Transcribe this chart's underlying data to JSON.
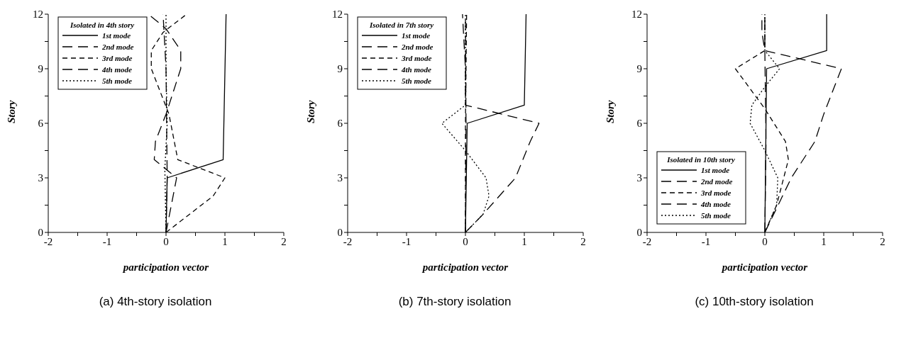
{
  "chart_data": [
    {
      "type": "line",
      "xlabel": "participation vector",
      "ylabel": "Story",
      "legend_title": "Isolated in 4th story",
      "legend": "top left",
      "marker": "none",
      "annotations": [
        "(a) 4th-story isolation"
      ],
      "xlim": [
        -2,
        2
      ],
      "xticks": [
        -2,
        {
          "value": -1.5,
          "label": null
        },
        -1,
        {
          "value": -0.5,
          "label": null
        },
        0,
        {
          "value": 0.5,
          "label": null
        },
        1,
        {
          "value": 1.5,
          "label": null
        },
        2
      ],
      "ylim": [
        0,
        12
      ],
      "yticks": [
        0,
        {
          "value": 1.5,
          "label": null
        },
        3,
        {
          "value": 4.5,
          "label": null
        },
        6,
        {
          "value": 7.5,
          "label": null
        },
        9,
        {
          "value": 10.5,
          "label": null
        },
        12
      ],
      "series": [
        {
          "name": "1st mode",
          "color": "#000000",
          "line_style": "solid",
          "x": [
            0,
            0.02,
            0.97,
            1.02
          ],
          "values": [
            0,
            3,
            4,
            12
          ]
        },
        {
          "name": "2nd mode",
          "color": "#000000",
          "line_style": "dashed",
          "x": [
            0,
            0.02,
            0.01,
            0,
            -0.05
          ],
          "values": [
            0,
            3,
            6,
            9,
            12
          ]
        },
        {
          "name": "3rd mode",
          "color": "#000000",
          "line_style": "dashed",
          "x": [
            0,
            0.8,
            1.0,
            0.2,
            0.05,
            -0.25,
            -0.25,
            -0.05,
            0.35
          ],
          "values": [
            0,
            2,
            3,
            4,
            6.5,
            9,
            10,
            11,
            12
          ]
        },
        {
          "name": "4th mode",
          "color": "#000000",
          "line_style": "dashed",
          "x": [
            0,
            0.18,
            -0.2,
            -0.18,
            0,
            0.25,
            0.25,
            0,
            -0.3
          ],
          "values": [
            0,
            3,
            4,
            5,
            6.5,
            9,
            10,
            11.2,
            12
          ]
        },
        {
          "name": "5th mode",
          "color": "#000000",
          "line_style": "dotted",
          "x": [
            0,
            -0.02,
            0.02,
            0,
            0
          ],
          "values": [
            0,
            3.5,
            6,
            9,
            12
          ]
        }
      ]
    },
    {
      "type": "line",
      "xlabel": "participation vector",
      "ylabel": "Story",
      "legend_title": "Isolated in 7th story",
      "legend": "top left",
      "marker": "none",
      "annotations": [
        "(b) 7th-story isolation"
      ],
      "xlim": [
        -2,
        2
      ],
      "xticks": [
        -2,
        {
          "value": -1.5,
          "label": null
        },
        -1,
        {
          "value": -0.5,
          "label": null
        },
        0,
        {
          "value": 0.5,
          "label": null
        },
        1,
        {
          "value": 1.5,
          "label": null
        },
        2
      ],
      "ylim": [
        0,
        12
      ],
      "yticks": [
        0,
        {
          "value": 1.5,
          "label": null
        },
        3,
        {
          "value": 4.5,
          "label": null
        },
        6,
        {
          "value": 7.5,
          "label": null
        },
        9,
        {
          "value": 10.5,
          "label": null
        },
        12
      ],
      "series": [
        {
          "name": "1st mode",
          "color": "#000000",
          "line_style": "solid",
          "x": [
            0,
            0.03,
            1.0,
            1.03
          ],
          "values": [
            0,
            6,
            7,
            12
          ]
        },
        {
          "name": "2nd mode",
          "color": "#000000",
          "line_style": "dashed",
          "x": [
            0,
            0.3,
            0.85,
            1.1,
            1.25,
            0,
            0,
            -0.05
          ],
          "values": [
            0,
            1,
            3,
            5,
            6,
            7,
            9,
            12
          ]
        },
        {
          "name": "3rd mode",
          "color": "#000000",
          "line_style": "dashed",
          "x": [
            0,
            0,
            0.02
          ],
          "values": [
            0,
            6,
            12
          ]
        },
        {
          "name": "4th mode",
          "color": "#000000",
          "line_style": "dashed",
          "x": [
            0,
            0.01,
            0
          ],
          "values": [
            0,
            6,
            12
          ]
        },
        {
          "name": "5th mode",
          "color": "#000000",
          "line_style": "dotted",
          "x": [
            0,
            0.3,
            0.4,
            0.35,
            0,
            -0.4,
            0,
            0,
            0
          ],
          "values": [
            0,
            1,
            2,
            3,
            4.5,
            6,
            7,
            9,
            12
          ]
        }
      ]
    },
    {
      "type": "line",
      "xlabel": "participation vector",
      "ylabel": "Story",
      "legend_title": "Isolated in 10th story",
      "legend": "bottom left",
      "marker": "none",
      "annotations": [
        "(c) 10th-story isolation"
      ],
      "xlim": [
        -2,
        2
      ],
      "xticks": [
        -2,
        {
          "value": -1.5,
          "label": null
        },
        -1,
        {
          "value": -0.5,
          "label": null
        },
        0,
        {
          "value": 0.5,
          "label": null
        },
        1,
        {
          "value": 1.5,
          "label": null
        },
        2
      ],
      "ylim": [
        0,
        12
      ],
      "yticks": [
        0,
        {
          "value": 1.5,
          "label": null
        },
        3,
        {
          "value": 4.5,
          "label": null
        },
        6,
        {
          "value": 7.5,
          "label": null
        },
        9,
        {
          "value": 10.5,
          "label": null
        },
        12
      ],
      "series": [
        {
          "name": "1st mode",
          "color": "#000000",
          "line_style": "solid",
          "x": [
            0,
            0.03,
            1.05,
            1.05
          ],
          "values": [
            0,
            9,
            10,
            12
          ]
        },
        {
          "name": "2nd mode",
          "color": "#000000",
          "line_style": "dashed",
          "x": [
            0,
            0.45,
            0.85,
            1.0,
            1.3,
            0,
            -0.05,
            -0.05
          ],
          "values": [
            0,
            3,
            5,
            6.5,
            9,
            10,
            11,
            12
          ]
        },
        {
          "name": "3rd mode",
          "color": "#000000",
          "line_style": "dashed",
          "x": [
            0,
            0.2,
            0.4,
            0.35,
            0,
            -0.5,
            0,
            0
          ],
          "values": [
            0,
            1.5,
            4,
            5,
            6.8,
            9,
            10,
            12
          ]
        },
        {
          "name": "4th mode",
          "color": "#000000",
          "line_style": "dashed",
          "x": [
            0,
            0.02,
            0,
            0
          ],
          "values": [
            0,
            5,
            10,
            12
          ]
        },
        {
          "name": "5th mode",
          "color": "#000000",
          "line_style": "dotted",
          "x": [
            0,
            0.2,
            0.22,
            0,
            -0.25,
            -0.22,
            0,
            0.25,
            0,
            0
          ],
          "values": [
            0,
            1.5,
            3,
            4.5,
            6,
            7,
            8,
            9,
            10,
            12
          ]
        }
      ]
    }
  ]
}
